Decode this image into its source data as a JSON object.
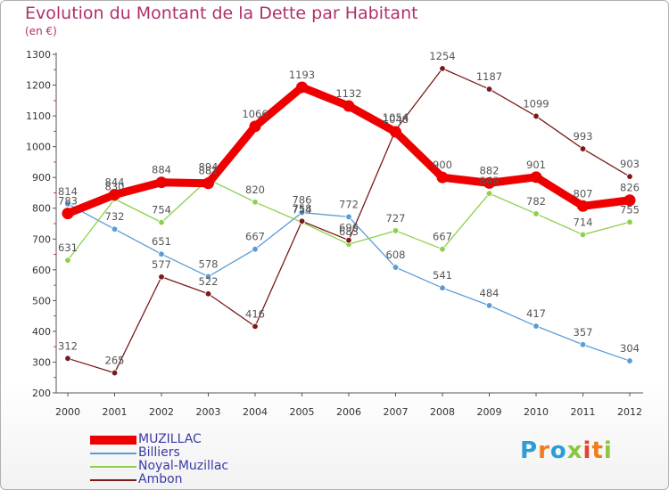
{
  "chart_data": {
    "type": "line",
    "title": "Evolution du Montant de la Dette par Habitant",
    "ylabel": "(en €)",
    "xlabel": "",
    "ylim": [
      200,
      1300
    ],
    "yticks": [
      200,
      300,
      400,
      500,
      600,
      700,
      800,
      900,
      1000,
      1100,
      1200,
      1300
    ],
    "categories": [
      "2000",
      "2001",
      "2002",
      "2003",
      "2004",
      "2005",
      "2006",
      "2007",
      "2008",
      "2009",
      "2010",
      "2011",
      "2012"
    ],
    "series": [
      {
        "name": "MUZILLAC",
        "color": "#ee0000",
        "values": [
          783,
          844,
          884,
          881,
          1066,
          1193,
          1132,
          1048,
          900,
          882,
          901,
          807,
          826
        ]
      },
      {
        "name": "Billiers",
        "color": "#5b9bd5",
        "values": [
          814,
          732,
          651,
          578,
          667,
          786,
          772,
          608,
          541,
          484,
          417,
          357,
          304
        ]
      },
      {
        "name": "Noyal-Muzillac",
        "color": "#8bd14d",
        "values": [
          631,
          830,
          754,
          894,
          820,
          754,
          683,
          727,
          667,
          848,
          782,
          714,
          755
        ]
      },
      {
        "name": "Ambon",
        "color": "#7a1a1a",
        "values": [
          312,
          265,
          577,
          522,
          416,
          758,
          696,
          1054,
          1254,
          1187,
          1099,
          993,
          903
        ]
      }
    ],
    "legend_position": "bottom-left",
    "grid": false
  },
  "brand": {
    "letters": [
      "P",
      "r",
      "o",
      "x",
      "i",
      "t",
      "i"
    ],
    "colors": [
      "#2a9fd6",
      "#f07c1a",
      "#2a9fd6",
      "#8cc63f",
      "#e8412c",
      "#f07c1a",
      "#8cc63f"
    ]
  }
}
